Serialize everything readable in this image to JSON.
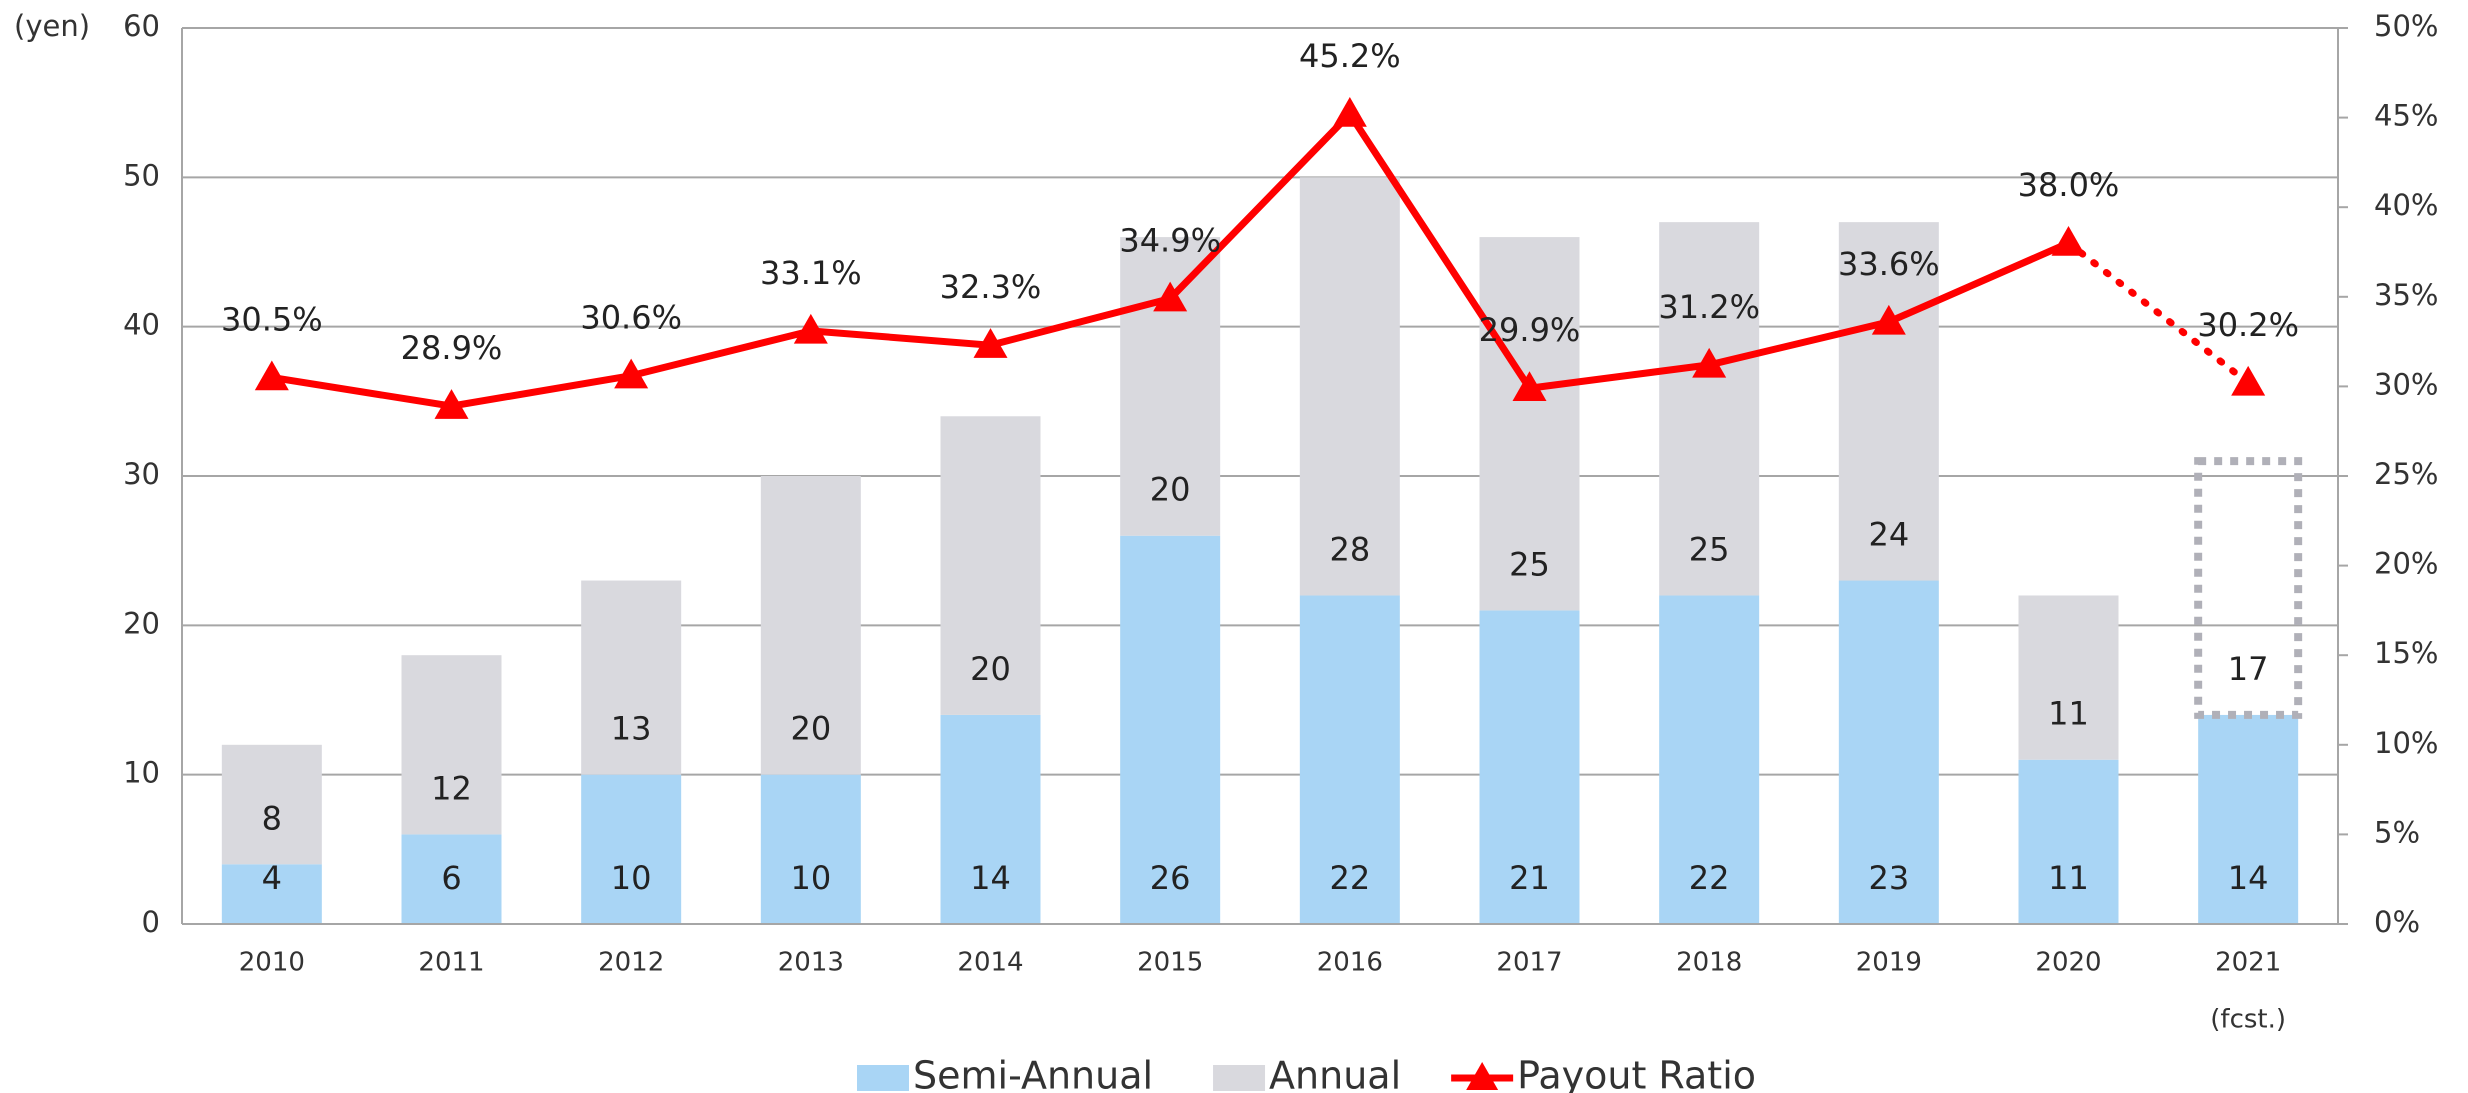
{
  "chart_data": {
    "type": "bar",
    "stacked": true,
    "y_label": "(yen)",
    "categories": [
      "2010",
      "2011",
      "2012",
      "2013",
      "2014",
      "2015",
      "2016",
      "2017",
      "2018",
      "2019",
      "2020",
      "2021"
    ],
    "series": [
      {
        "name": "Semi-Annual",
        "color": "#a9d5f5",
        "values": [
          4,
          6,
          10,
          10,
          14,
          26,
          22,
          21,
          22,
          23,
          11,
          14
        ]
      },
      {
        "name": "Annual",
        "color": "#d9d9de",
        "values": [
          8,
          12,
          13,
          20,
          20,
          20,
          28,
          25,
          25,
          24,
          11,
          17
        ]
      },
      {
        "name": "Payout Ratio",
        "type": "line",
        "axis": "y2",
        "color": "#ff0000",
        "values": [
          30.5,
          28.9,
          30.6,
          33.1,
          32.3,
          34.9,
          45.2,
          29.9,
          31.2,
          33.6,
          38.0,
          30.2
        ],
        "value_labels": [
          "30.5%",
          "28.9%",
          "30.6%",
          "33.1%",
          "32.3%",
          "34.9%",
          "45.2%",
          "29.9%",
          "31.2%",
          "33.6%",
          "38.0%",
          "30.2%"
        ]
      }
    ],
    "forecast": {
      "category": "2021",
      "label": "(fcst.)"
    },
    "ylim": [
      0,
      60
    ],
    "yticks": [
      0,
      10,
      20,
      30,
      40,
      50,
      60
    ],
    "y2lim": [
      0,
      50
    ],
    "y2ticks": [
      {
        "value": 0,
        "label": "0%"
      },
      {
        "value": 5,
        "label": "5%"
      },
      {
        "value": 10,
        "label": "10%"
      },
      {
        "value": 15,
        "label": "15%"
      },
      {
        "value": 20,
        "label": "20%"
      },
      {
        "value": 25,
        "label": "25%"
      },
      {
        "value": 30,
        "label": "30%"
      },
      {
        "value": 35,
        "label": "35%"
      },
      {
        "value": 40,
        "label": "40%"
      },
      {
        "value": 45,
        "label": "45%"
      },
      {
        "value": 50,
        "label": "50%"
      }
    ],
    "grid": true,
    "legend": "bottom"
  }
}
